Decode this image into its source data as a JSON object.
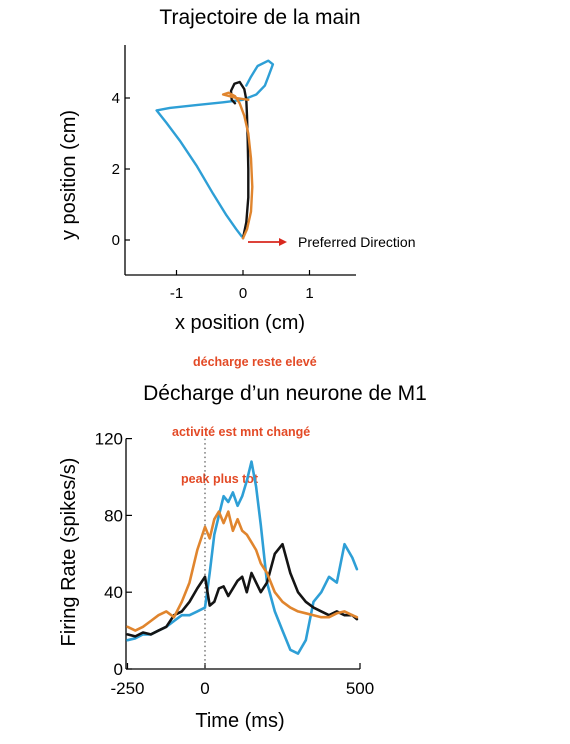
{
  "colors": {
    "blue": "#2e9fd6",
    "orange": "#e0852e",
    "black": "#141414",
    "arrow_red": "#d8281e",
    "annotation_red": "#e34a26",
    "axis": "#000000"
  },
  "annotations": {
    "high_discharge": "décharge reste elevé",
    "activity_changed": "activité est mnt changé",
    "earlier_peak": "peak plus tot"
  },
  "chart_data": [
    {
      "type": "line",
      "title": "Trajectoire de la main",
      "xlabel": "x position (cm)",
      "ylabel": "y position (cm)",
      "xlim": [
        -1.8,
        1.7
      ],
      "ylim": [
        -0.5,
        5.5
      ],
      "xticks": [
        -1,
        0,
        1
      ],
      "xtick_labels": [
        "-1",
        "0",
        "1"
      ],
      "yticks": [
        0,
        2,
        4
      ],
      "ytick_labels": [
        "0",
        "2",
        "4"
      ],
      "grid": false,
      "arrow_label": "Preferred Direction",
      "series": [
        {
          "color": "#2e9fd6",
          "points": [
            [
              -0.02,
              0.1
            ],
            [
              -0.1,
              0.3
            ],
            [
              -0.25,
              0.7
            ],
            [
              -0.45,
              1.3
            ],
            [
              -0.7,
              2.1
            ],
            [
              -0.95,
              2.8
            ],
            [
              -1.15,
              3.3
            ],
            [
              -1.3,
              3.65
            ],
            [
              -1.1,
              3.72
            ],
            [
              -0.7,
              3.8
            ],
            [
              -0.3,
              3.88
            ],
            [
              0.0,
              3.95
            ],
            [
              0.2,
              4.1
            ],
            [
              0.33,
              4.35
            ],
            [
              0.38,
              4.6
            ],
            [
              0.45,
              4.95
            ],
            [
              0.38,
              5.05
            ],
            [
              0.22,
              4.9
            ],
            [
              0.12,
              4.6
            ],
            [
              0.05,
              4.35
            ]
          ]
        },
        {
          "color": "#141414",
          "points": [
            [
              0.0,
              0.05
            ],
            [
              0.05,
              0.5
            ],
            [
              0.08,
              1.2
            ],
            [
              0.08,
              2.0
            ],
            [
              0.07,
              2.8
            ],
            [
              0.06,
              3.5
            ],
            [
              0.05,
              3.95
            ],
            [
              0.02,
              4.25
            ],
            [
              -0.05,
              4.45
            ],
            [
              -0.13,
              4.4
            ],
            [
              -0.18,
              4.2
            ],
            [
              -0.17,
              3.95
            ],
            [
              -0.12,
              3.85
            ]
          ]
        },
        {
          "color": "#e0852e",
          "points": [
            [
              0.0,
              0.05
            ],
            [
              0.06,
              0.3
            ],
            [
              0.12,
              0.8
            ],
            [
              0.14,
              1.5
            ],
            [
              0.12,
              2.3
            ],
            [
              0.08,
              3.0
            ],
            [
              0.02,
              3.5
            ],
            [
              -0.05,
              3.85
            ],
            [
              -0.12,
              4.05
            ],
            [
              -0.22,
              4.15
            ],
            [
              -0.3,
              4.1
            ],
            [
              -0.1,
              4.0
            ],
            [
              0.08,
              3.95
            ]
          ]
        }
      ]
    },
    {
      "type": "line",
      "title": "Décharge d’un neurone de M1",
      "xlabel": "Time (ms)",
      "ylabel": "Firing Rate (spikes/s)",
      "xlim": [
        -250,
        500
      ],
      "ylim": [
        0,
        120
      ],
      "xticks": [
        -250,
        0,
        500
      ],
      "xtick_labels": [
        "-250",
        "0",
        "500"
      ],
      "yticks": [
        0,
        40,
        80,
        120
      ],
      "ytick_labels": [
        "0",
        "40",
        "80",
        "120"
      ],
      "grid": false,
      "vline_x": 0,
      "x": [
        -250,
        -225,
        -200,
        -175,
        -150,
        -125,
        -100,
        -75,
        -50,
        -25,
        0,
        15,
        30,
        45,
        60,
        75,
        90,
        105,
        120,
        135,
        150,
        165,
        180,
        200,
        225,
        250,
        275,
        300,
        325,
        350,
        375,
        400,
        425,
        450,
        475,
        490
      ],
      "series": [
        {
          "color": "#2e9fd6",
          "values": [
            15,
            16,
            18,
            18,
            20,
            22,
            25,
            28,
            28,
            30,
            32,
            50,
            70,
            80,
            90,
            87,
            92,
            85,
            90,
            98,
            108,
            95,
            75,
            45,
            30,
            20,
            10,
            8,
            15,
            35,
            40,
            48,
            45,
            65,
            58,
            52
          ]
        },
        {
          "color": "#141414",
          "values": [
            18,
            17,
            19,
            18,
            20,
            22,
            28,
            30,
            35,
            42,
            48,
            33,
            35,
            42,
            43,
            38,
            42,
            46,
            48,
            40,
            50,
            45,
            40,
            45,
            60,
            65,
            50,
            40,
            35,
            32,
            30,
            28,
            30,
            28,
            28,
            26
          ]
        },
        {
          "color": "#e0852e",
          "values": [
            22,
            20,
            22,
            25,
            28,
            30,
            27,
            35,
            45,
            62,
            74,
            68,
            78,
            82,
            76,
            82,
            72,
            78,
            72,
            70,
            66,
            62,
            55,
            50,
            40,
            35,
            32,
            30,
            29,
            28,
            27,
            27,
            29,
            30,
            28,
            27
          ]
        }
      ]
    }
  ]
}
